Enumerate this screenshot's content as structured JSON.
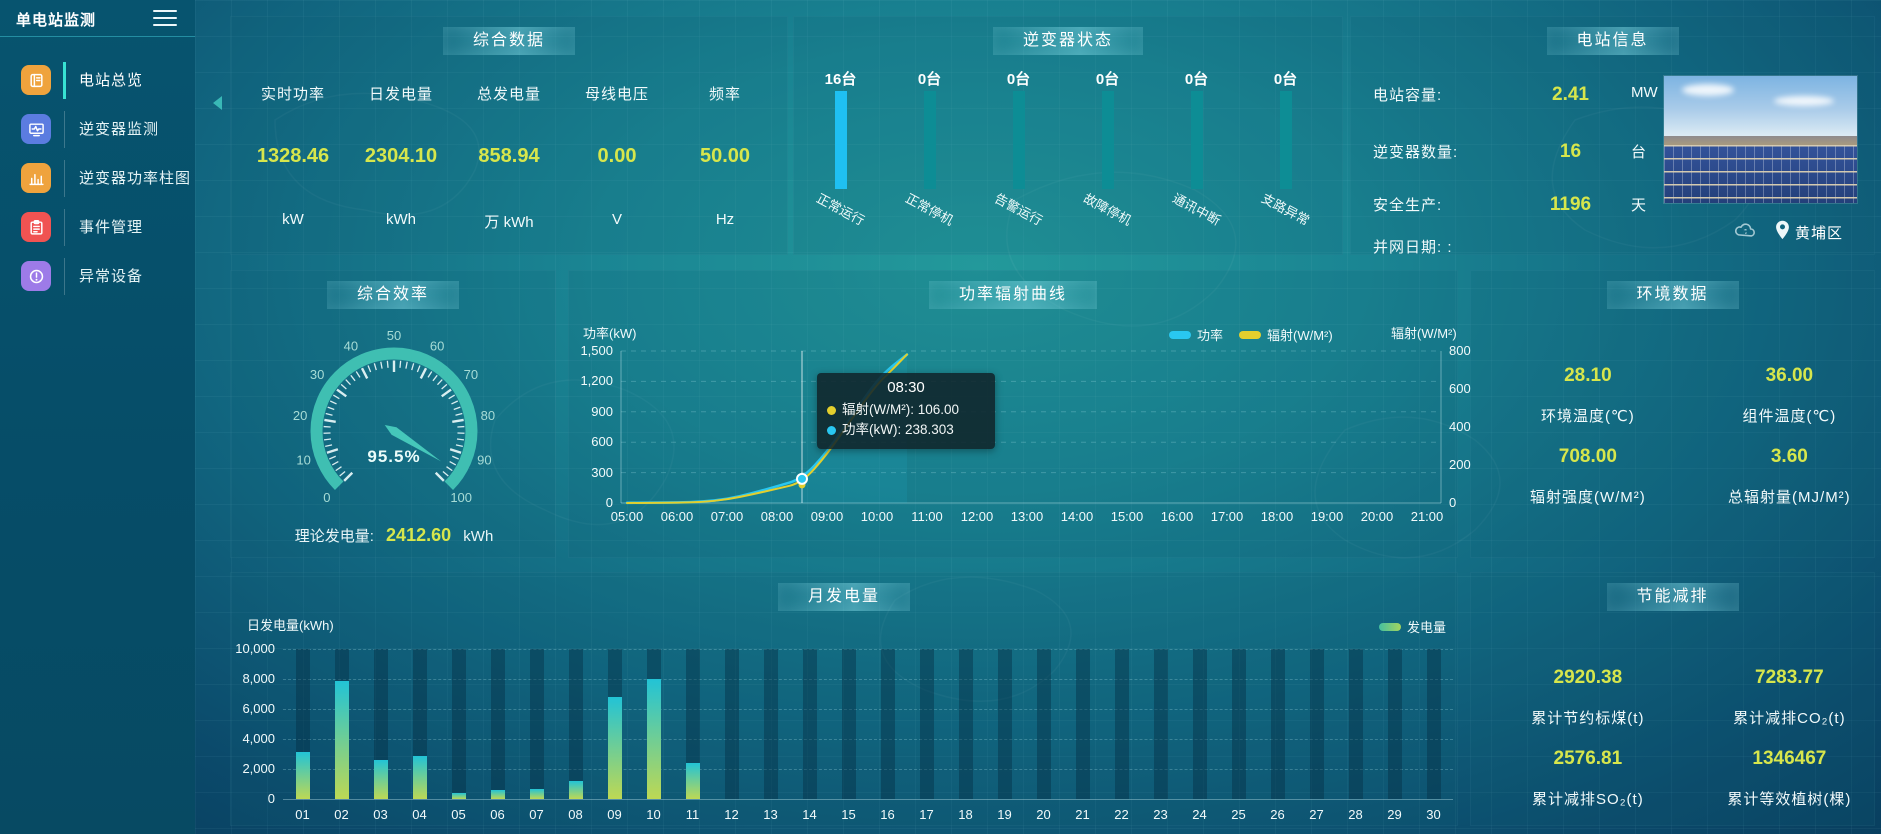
{
  "app": {
    "title": "单电站监测"
  },
  "sidebar": {
    "items": [
      {
        "label": "电站总览",
        "icon": "station-overview-icon",
        "color": "#efa33d",
        "active": true
      },
      {
        "label": "逆变器监测",
        "icon": "inverter-monitor-icon",
        "color": "#5b7ce0",
        "active": false
      },
      {
        "label": "逆变器功率柱图",
        "icon": "power-bars-icon",
        "color": "#efa33d",
        "active": false
      },
      {
        "label": "事件管理",
        "icon": "event-manage-icon",
        "color": "#f05352",
        "active": false
      },
      {
        "label": "异常设备",
        "icon": "abnormal-device-icon",
        "color": "#9d7be8",
        "active": false
      }
    ]
  },
  "panels": {
    "summary": {
      "title": "综合数据",
      "metrics": [
        {
          "label": "实时功率",
          "value": "1328.46",
          "unit": "kW"
        },
        {
          "label": "日发电量",
          "value": "2304.10",
          "unit": "kWh"
        },
        {
          "label": "总发电量",
          "value": "858.94",
          "unit": "万  kWh"
        },
        {
          "label": "母线电压",
          "value": "0.00",
          "unit": "V"
        },
        {
          "label": "频率",
          "value": "50.00",
          "unit": "Hz"
        }
      ]
    },
    "inverter_status": {
      "title": "逆变器状态",
      "active_bar_color": "#1fc0f2",
      "bar_color": "#0d8d95",
      "items": [
        {
          "count": "16台",
          "label": "正常运行",
          "highlight": true
        },
        {
          "count": "0台",
          "label": "正常停机",
          "highlight": false
        },
        {
          "count": "0台",
          "label": "告警运行",
          "highlight": false
        },
        {
          "count": "0台",
          "label": "故障停机",
          "highlight": false
        },
        {
          "count": "0台",
          "label": "通讯中断",
          "highlight": false
        },
        {
          "count": "0台",
          "label": "支路异常",
          "highlight": false
        }
      ]
    },
    "station_info": {
      "title": "电站信息",
      "rows": [
        {
          "label": "电站容量:",
          "value": "2.41",
          "unit": "MW"
        },
        {
          "label": "逆变器数量:",
          "value": "16",
          "unit": "台"
        },
        {
          "label": "安全生产:",
          "value": "1196",
          "unit": "天"
        },
        {
          "label": "并网日期:  :",
          "value": "",
          "unit": ""
        }
      ],
      "location": "黄埔区"
    },
    "efficiency": {
      "title": "综合效率",
      "value_label": "95.5%",
      "theory_label": "理论发电量:",
      "theory_value": "2412.60",
      "theory_unit": "kWh"
    },
    "curve": {
      "title": "功率辐射曲线",
      "y_left_name": "功率(kW)",
      "y_right_name": "辐射(W/M²)",
      "legend": [
        {
          "label": "功率",
          "color": "#29c7f0"
        },
        {
          "label": "辐射(W/M²)",
          "color": "#e3cf2d"
        }
      ],
      "tooltip": {
        "title": "08:30",
        "items": [
          {
            "text": "辐射(W/M²): 106.00",
            "color": "#e3cf2d"
          },
          {
            "text": "功率(kW): 238.303",
            "color": "#29c7f0"
          }
        ]
      }
    },
    "env": {
      "title": "环境数据",
      "items": [
        {
          "value": "28.10",
          "label": "环境温度(℃)"
        },
        {
          "value": "36.00",
          "label": "组件温度(℃)"
        },
        {
          "value": "708.00",
          "label": "辐射强度(W/M²)"
        },
        {
          "value": "3.60",
          "label": "总辐射量(MJ/M²)"
        }
      ]
    },
    "monthly": {
      "title": "月发电量",
      "axis_name": "日发电量(kWh)",
      "legend": "发电量"
    },
    "saving": {
      "title": "节能减排",
      "items": [
        {
          "value": "2920.38",
          "label": "累计节约标煤(t)"
        },
        {
          "value": "7283.77",
          "label": "累计减排CO₂(t)"
        },
        {
          "value": "2576.81",
          "label": "累计减排SO₂(t)"
        },
        {
          "value": "1346467",
          "label": "累计等效植树(棵)"
        }
      ]
    }
  },
  "chart_data": [
    {
      "id": "power_radiation_curve",
      "type": "line",
      "title": "功率辐射曲线",
      "x_labels": [
        "05:00",
        "06:00",
        "07:00",
        "08:00",
        "09:00",
        "10:00",
        "11:00",
        "12:00",
        "13:00",
        "14:00",
        "15:00",
        "16:00",
        "17:00",
        "18:00",
        "19:00",
        "20:00",
        "21:00"
      ],
      "x_hours": [
        5,
        5.5,
        6,
        6.5,
        7,
        7.5,
        8,
        8.5,
        9,
        9.5,
        10,
        10.3,
        10.6
      ],
      "series": [
        {
          "name": "功率",
          "unit": "kW",
          "axis": "left",
          "color": "#29c7f0",
          "values": [
            2,
            3,
            5,
            12,
            38,
            95,
            165,
            238.303,
            500,
            860,
            1210,
            1350,
            1465
          ]
        },
        {
          "name": "辐射",
          "unit": "W/M²",
          "axis": "right",
          "color": "#e3cf2d",
          "values": [
            0,
            1,
            2,
            5,
            18,
            45,
            75,
            106,
            255,
            445,
            625,
            700,
            782
          ]
        }
      ],
      "y_left": {
        "name": "功率(kW)",
        "min": 0,
        "max": 1500,
        "ticks": [
          "1,500",
          "1,200",
          "900",
          "600",
          "300",
          "0"
        ]
      },
      "y_right": {
        "name": "辐射(W/M²)",
        "min": 0,
        "max": 800,
        "ticks": [
          "800",
          "600",
          "400",
          "200",
          "0"
        ]
      },
      "highlight": {
        "time": "08:30",
        "hour": 8.5,
        "power_kw": 238.303,
        "radiation_wm2": 106.0
      },
      "legend_position": "top-right",
      "grid": "dashed-horizontal"
    },
    {
      "id": "monthly_generation",
      "type": "bar",
      "title": "月发电量",
      "ylabel": "日发电量(kWh)",
      "categories": [
        "01",
        "02",
        "03",
        "04",
        "05",
        "06",
        "07",
        "08",
        "09",
        "10",
        "11",
        "12",
        "13",
        "14",
        "15",
        "16",
        "17",
        "18",
        "19",
        "20",
        "21",
        "22",
        "23",
        "24",
        "25",
        "26",
        "27",
        "28",
        "29",
        "30"
      ],
      "values": [
        3150,
        7900,
        2600,
        2900,
        400,
        600,
        700,
        1200,
        6800,
        8000,
        2400,
        0,
        0,
        0,
        0,
        0,
        0,
        0,
        0,
        0,
        0,
        0,
        0,
        0,
        0,
        0,
        0,
        0,
        0,
        0
      ],
      "ylim": [
        0,
        10000
      ],
      "y_ticks": [
        "10,000",
        "8,000",
        "6,000",
        "4,000",
        "2,000",
        "0"
      ],
      "legend": [
        "发电量"
      ],
      "bar_gradient": [
        "#22c3d6",
        "#bdd854"
      ]
    },
    {
      "id": "inverter_status_bars",
      "type": "bar",
      "categories": [
        "正常运行",
        "正常停机",
        "告警运行",
        "故障停机",
        "通讯中断",
        "支路异常"
      ],
      "values": [
        16,
        0,
        0,
        0,
        0,
        0
      ],
      "unit": "台"
    },
    {
      "id": "efficiency_gauge",
      "type": "gauge",
      "value": 95.5,
      "min": 0,
      "max": 100,
      "unit": "%",
      "major_ticks": [
        0,
        10,
        20,
        30,
        40,
        50,
        60,
        70,
        80,
        90,
        100
      ]
    }
  ]
}
